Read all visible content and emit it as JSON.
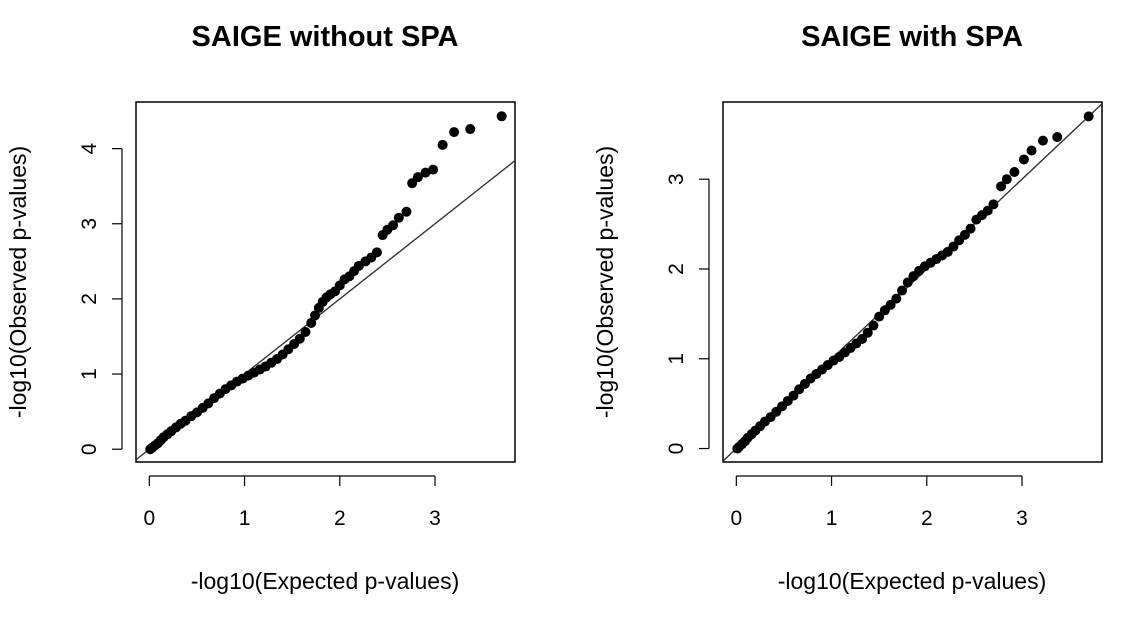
{
  "chart_data": [
    {
      "type": "scatter",
      "title": "SAIGE without SPA",
      "xlabel": "-log10(Expected p-values)",
      "ylabel": "-log10(Observed p-values)",
      "xlim": [
        -0.14,
        3.84
      ],
      "ylim": [
        -0.17,
        4.62
      ],
      "xticks": [
        0,
        1,
        2,
        3
      ],
      "yticks": [
        0,
        1,
        2,
        3,
        4
      ],
      "xtick_labels": [
        "0",
        "1",
        "2",
        "3"
      ],
      "ytick_labels": [
        "0",
        "1",
        "2",
        "3",
        "4"
      ],
      "reference_line": "y = x",
      "grid": false,
      "series": [
        {
          "points": [
            [
              0.01,
              0.0
            ],
            [
              0.03,
              0.02
            ],
            [
              0.06,
              0.05
            ],
            [
              0.09,
              0.08
            ],
            [
              0.12,
              0.12
            ],
            [
              0.15,
              0.16
            ],
            [
              0.19,
              0.2
            ],
            [
              0.23,
              0.24
            ],
            [
              0.28,
              0.29
            ],
            [
              0.33,
              0.34
            ],
            [
              0.38,
              0.38
            ],
            [
              0.44,
              0.44
            ],
            [
              0.5,
              0.49
            ],
            [
              0.56,
              0.55
            ],
            [
              0.62,
              0.61
            ],
            [
              0.68,
              0.68
            ],
            [
              0.74,
              0.74
            ],
            [
              0.8,
              0.8
            ],
            [
              0.86,
              0.85
            ],
            [
              0.92,
              0.9
            ],
            [
              0.98,
              0.94
            ],
            [
              1.04,
              0.98
            ],
            [
              1.1,
              1.02
            ],
            [
              1.16,
              1.06
            ],
            [
              1.22,
              1.1
            ],
            [
              1.28,
              1.15
            ],
            [
              1.34,
              1.2
            ],
            [
              1.4,
              1.26
            ],
            [
              1.46,
              1.33
            ],
            [
              1.52,
              1.4
            ],
            [
              1.58,
              1.47
            ],
            [
              1.64,
              1.56
            ],
            [
              1.7,
              1.68
            ],
            [
              1.74,
              1.78
            ],
            [
              1.78,
              1.88
            ],
            [
              1.82,
              1.96
            ],
            [
              1.86,
              2.02
            ],
            [
              1.9,
              2.06
            ],
            [
              1.95,
              2.1
            ],
            [
              2.0,
              2.18
            ],
            [
              2.05,
              2.26
            ],
            [
              2.1,
              2.3
            ],
            [
              2.15,
              2.37
            ],
            [
              2.2,
              2.44
            ],
            [
              2.27,
              2.5
            ],
            [
              2.33,
              2.55
            ],
            [
              2.39,
              2.62
            ],
            [
              2.45,
              2.85
            ],
            [
              2.5,
              2.92
            ],
            [
              2.56,
              2.98
            ],
            [
              2.62,
              3.08
            ],
            [
              2.7,
              3.16
            ],
            [
              2.76,
              3.54
            ],
            [
              2.82,
              3.62
            ],
            [
              2.9,
              3.68
            ],
            [
              2.98,
              3.72
            ],
            [
              3.08,
              4.05
            ],
            [
              3.2,
              4.22
            ],
            [
              3.37,
              4.26
            ],
            [
              3.7,
              4.43
            ]
          ]
        }
      ]
    },
    {
      "type": "scatter",
      "title": "SAIGE with SPA",
      "xlabel": "-log10(Expected p-values)",
      "ylabel": "-log10(Observed p-values)",
      "xlim": [
        -0.14,
        3.84
      ],
      "ylim": [
        -0.15,
        3.86
      ],
      "xticks": [
        0,
        1,
        2,
        3
      ],
      "yticks": [
        0,
        1,
        2,
        3
      ],
      "xtick_labels": [
        "0",
        "1",
        "2",
        "3"
      ],
      "ytick_labels": [
        "0",
        "1",
        "2",
        "3"
      ],
      "reference_line": "y = x",
      "grid": false,
      "series": [
        {
          "points": [
            [
              0.01,
              0.0
            ],
            [
              0.03,
              0.02
            ],
            [
              0.06,
              0.05
            ],
            [
              0.09,
              0.08
            ],
            [
              0.12,
              0.12
            ],
            [
              0.16,
              0.16
            ],
            [
              0.2,
              0.2
            ],
            [
              0.25,
              0.25
            ],
            [
              0.3,
              0.3
            ],
            [
              0.36,
              0.35
            ],
            [
              0.42,
              0.41
            ],
            [
              0.48,
              0.47
            ],
            [
              0.54,
              0.53
            ],
            [
              0.6,
              0.59
            ],
            [
              0.66,
              0.66
            ],
            [
              0.72,
              0.72
            ],
            [
              0.78,
              0.78
            ],
            [
              0.84,
              0.83
            ],
            [
              0.9,
              0.88
            ],
            [
              0.96,
              0.93
            ],
            [
              1.02,
              0.98
            ],
            [
              1.08,
              1.02
            ],
            [
              1.14,
              1.07
            ],
            [
              1.2,
              1.12
            ],
            [
              1.26,
              1.17
            ],
            [
              1.32,
              1.22
            ],
            [
              1.38,
              1.29
            ],
            [
              1.44,
              1.37
            ],
            [
              1.5,
              1.47
            ],
            [
              1.56,
              1.54
            ],
            [
              1.62,
              1.6
            ],
            [
              1.68,
              1.67
            ],
            [
              1.74,
              1.76
            ],
            [
              1.8,
              1.85
            ],
            [
              1.86,
              1.92
            ],
            [
              1.92,
              1.98
            ],
            [
              1.98,
              2.03
            ],
            [
              2.04,
              2.07
            ],
            [
              2.1,
              2.11
            ],
            [
              2.16,
              2.15
            ],
            [
              2.22,
              2.19
            ],
            [
              2.28,
              2.25
            ],
            [
              2.34,
              2.32
            ],
            [
              2.4,
              2.38
            ],
            [
              2.46,
              2.45
            ],
            [
              2.52,
              2.55
            ],
            [
              2.58,
              2.6
            ],
            [
              2.64,
              2.65
            ],
            [
              2.7,
              2.72
            ],
            [
              2.78,
              2.92
            ],
            [
              2.84,
              3.0
            ],
            [
              2.92,
              3.08
            ],
            [
              3.02,
              3.22
            ],
            [
              3.1,
              3.32
            ],
            [
              3.22,
              3.43
            ],
            [
              3.37,
              3.47
            ],
            [
              3.7,
              3.7
            ]
          ]
        }
      ]
    }
  ]
}
